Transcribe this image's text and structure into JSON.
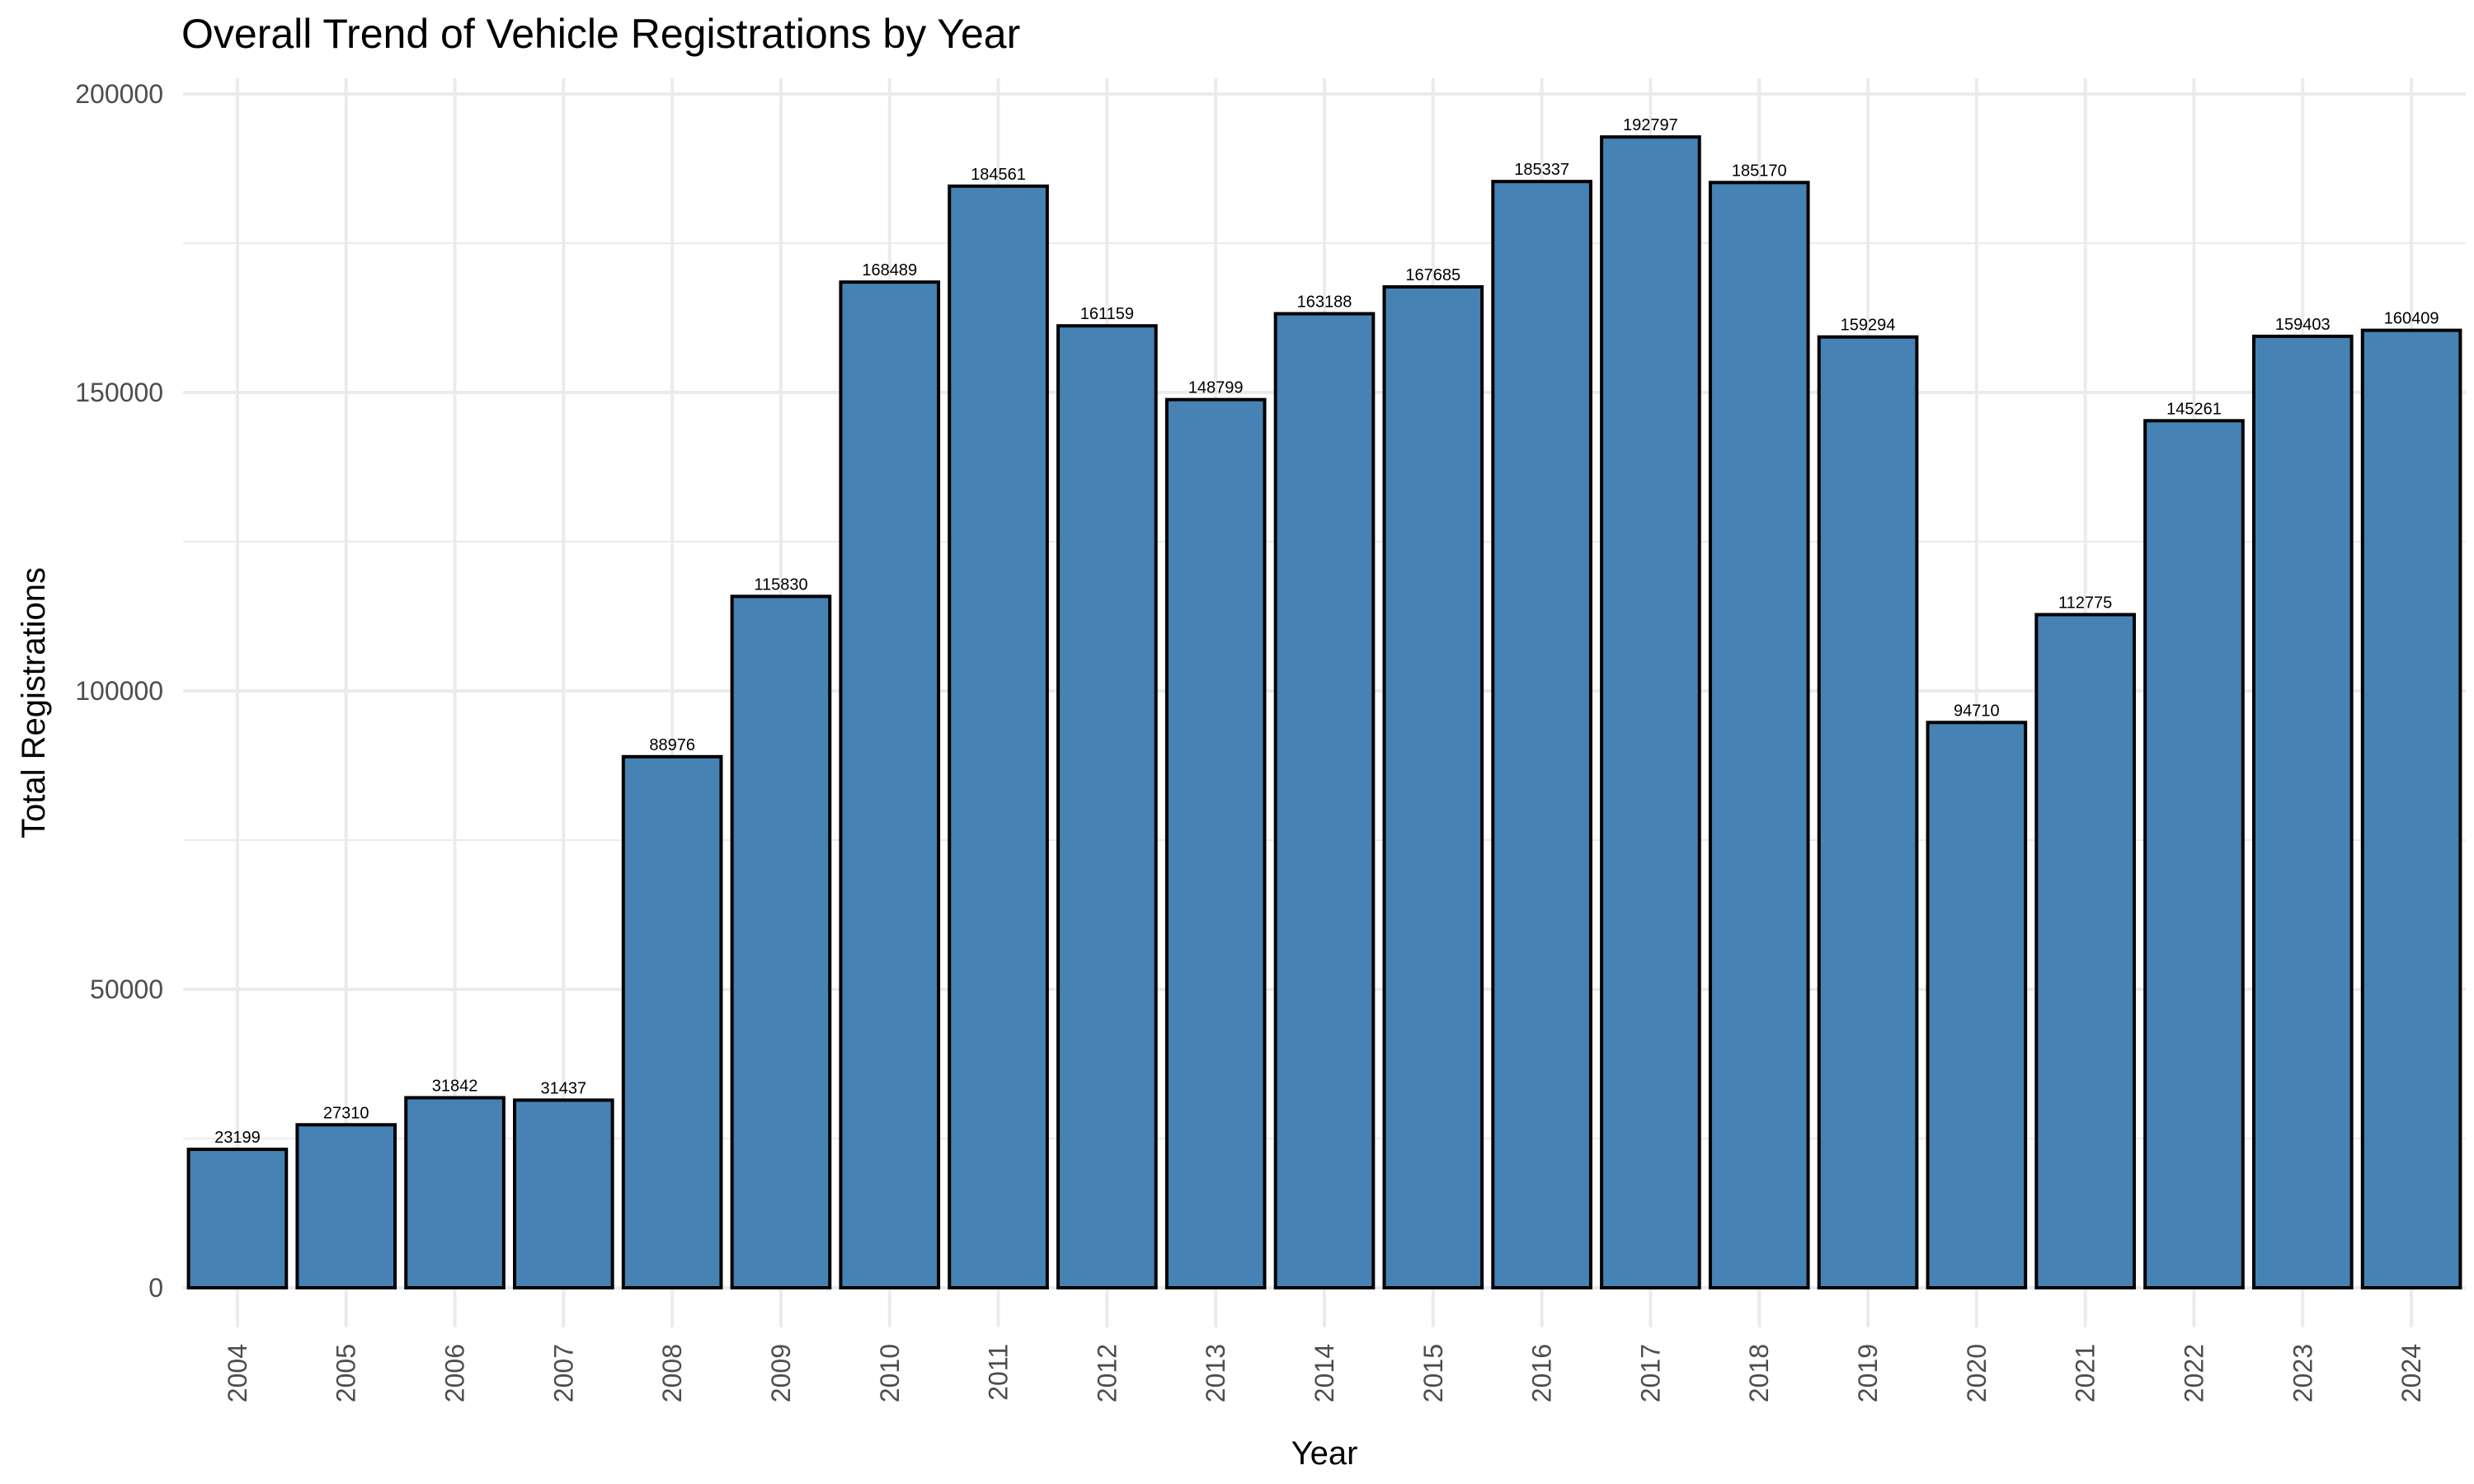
{
  "chart_data": {
    "type": "bar",
    "title": "Overall Trend of Vehicle Registrations by Year",
    "xlabel": "Year",
    "ylabel": "Total Registrations",
    "categories": [
      "2004",
      "2005",
      "2006",
      "2007",
      "2008",
      "2009",
      "2010",
      "2011",
      "2012",
      "2013",
      "2014",
      "2015",
      "2016",
      "2017",
      "2018",
      "2019",
      "2020",
      "2021",
      "2022",
      "2023",
      "2024"
    ],
    "values": [
      23199,
      27310,
      31842,
      31437,
      88976,
      115830,
      168489,
      184561,
      161159,
      148799,
      163188,
      167685,
      185337,
      192797,
      185170,
      159294,
      94710,
      112775,
      145261,
      159403,
      160409
    ],
    "data_labels": [
      "23199",
      "27310",
      "31842",
      "31437",
      "88976",
      "115830",
      "168489",
      "184561",
      "161159",
      "148799",
      "163188",
      "167685",
      "185337",
      "192797",
      "185170",
      "159294",
      "94710",
      "112775",
      "145261",
      "159403",
      "160409"
    ],
    "yticks": [
      0,
      50000,
      100000,
      150000,
      200000
    ],
    "ytick_labels": [
      "0",
      "50000",
      "100000",
      "150000",
      "200000"
    ],
    "ylim": [
      0,
      200000
    ],
    "grid": true,
    "legend": "none",
    "colors": {
      "bar_fill": "#4682B4",
      "bar_stroke": "#000000",
      "grid": "#ebebeb"
    }
  }
}
